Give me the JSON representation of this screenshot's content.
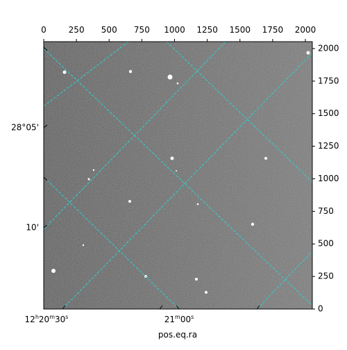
{
  "chart_data": {
    "type": "image",
    "xlabel": "pos.eq.ra",
    "xlim": [
      0,
      2053
    ],
    "ylim": [
      0,
      2053
    ],
    "xticks": [
      0,
      250,
      500,
      750,
      1000,
      1250,
      1500,
      1750,
      2000
    ],
    "yticks": [
      0,
      250,
      500,
      750,
      1000,
      1250,
      1500,
      1750,
      2000
    ],
    "dec_labels": [
      "28°05'",
      "10'"
    ],
    "ra_labels": [
      [
        "12",
        "h",
        "20",
        "m",
        "30",
        "s"
      ],
      [
        "21",
        "m",
        "00",
        "s"
      ]
    ]
  }
}
